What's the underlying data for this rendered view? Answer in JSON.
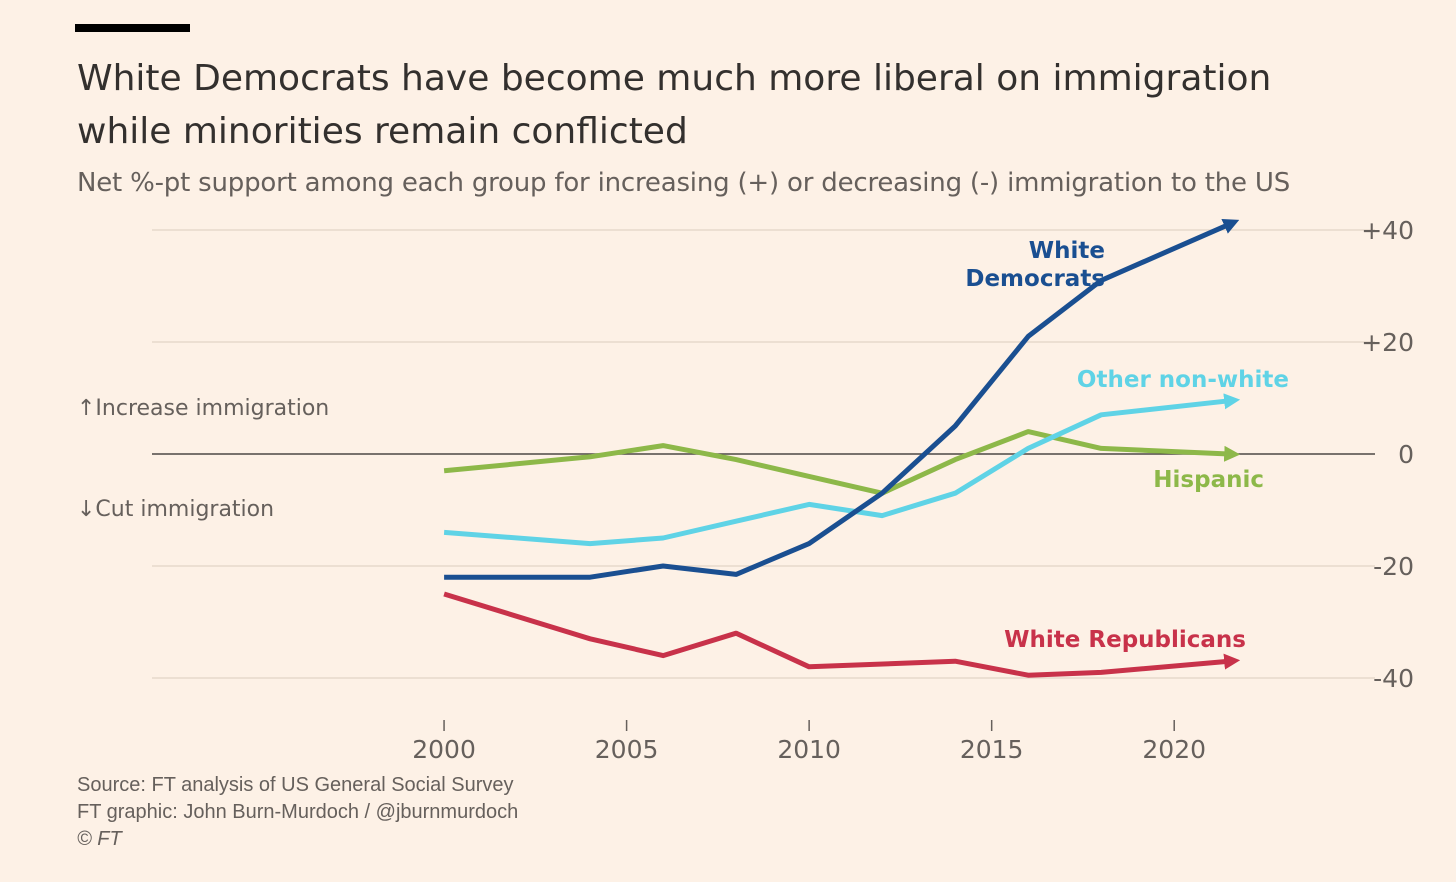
{
  "header": {
    "title_line1": "White Democrats have become much more liberal on immigration",
    "title_line2": "while minorities remain conflicted",
    "subtitle": "Net %-pt support among each group for increasing (+) or decreasing (-) immigration to the US"
  },
  "annotations": {
    "up": "Increase immigration",
    "down": "Cut immigration",
    "up_arrow": "↑",
    "down_arrow": "↓"
  },
  "footer": {
    "source": "Source: FT analysis of US General Social Survey",
    "credit": "FT graphic: John Burn-Murdoch / @jburnmurdoch",
    "copyright": "© FT"
  },
  "chart_data": {
    "type": "line",
    "xlim": [
      1992,
      2025.5
    ],
    "ylim": [
      -46,
      43
    ],
    "x_ticks": [
      2000,
      2005,
      2010,
      2015,
      2020
    ],
    "x_tick_labels": [
      "2000",
      "2005",
      "2010",
      "2015",
      "2020"
    ],
    "y_ticks": [
      40,
      20,
      0,
      -20,
      -40
    ],
    "y_tick_labels": [
      "+40",
      "+20",
      "0",
      "-20",
      "-40"
    ],
    "grid": true,
    "series": [
      {
        "name": "White Democrats",
        "color": "#1a4f91",
        "label_lines": [
          "White",
          "Democrats"
        ],
        "x": [
          2000,
          2004,
          2006,
          2008,
          2010,
          2012,
          2014,
          2016,
          2018,
          2021.5
        ],
        "y": [
          -22,
          -22,
          -20,
          -21.5,
          -16,
          -7,
          5,
          21,
          31,
          41
        ]
      },
      {
        "name": "Other non-white",
        "color": "#5fd3e6",
        "label_lines": [
          "Other non-white"
        ],
        "x": [
          2000,
          2004,
          2006,
          2008,
          2010,
          2012,
          2014,
          2016,
          2018,
          2021.5
        ],
        "y": [
          -14,
          -16,
          -15,
          -12,
          -9,
          -11,
          -7,
          1,
          7,
          9.5
        ]
      },
      {
        "name": "Hispanic",
        "color": "#8db849",
        "label_lines": [
          "Hispanic"
        ],
        "x": [
          2000,
          2004,
          2006,
          2008,
          2010,
          2012,
          2014,
          2016,
          2018,
          2021.5
        ],
        "y": [
          -3,
          -0.5,
          1.5,
          -1,
          -4,
          -7,
          -1,
          4,
          1,
          0
        ]
      },
      {
        "name": "White Republicans",
        "color": "#c8324a",
        "label_lines": [
          "White Republicans"
        ],
        "x": [
          2000,
          2004,
          2006,
          2008,
          2010,
          2014,
          2016,
          2018,
          2021.5
        ],
        "y": [
          -25,
          -33,
          -36,
          -32,
          -38,
          -37,
          -39.5,
          -39,
          -37
        ]
      }
    ]
  }
}
